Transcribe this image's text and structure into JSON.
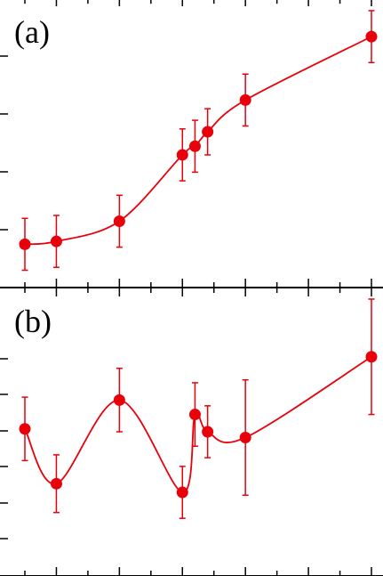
{
  "chart_data": [
    {
      "type": "scatter",
      "panel_label": "(a)",
      "title": "",
      "xlabel": "",
      "ylabel": "",
      "xlim": [
        -0.3,
        11.4
      ],
      "ylim": [
        0.0,
        10.0
      ],
      "grid": false,
      "color": "#e8000b",
      "series": [
        {
          "style": "points-with-error-bars-and-smooth-fit",
          "x": [
            0.0,
            1.0,
            3.0,
            5.0,
            5.4,
            5.8,
            7.0,
            11.0
          ],
          "y": [
            1.5,
            1.6,
            2.3,
            4.6,
            4.9,
            5.4,
            6.5,
            8.7
          ],
          "yerr": [
            0.9,
            0.9,
            0.9,
            0.9,
            0.9,
            0.8,
            0.9,
            0.9
          ]
        }
      ]
    },
    {
      "type": "scatter",
      "panel_label": "(b)",
      "title": "",
      "xlabel": "",
      "ylabel": "",
      "xlim": [
        -0.3,
        11.4
      ],
      "ylim": [
        0.0,
        10.0
      ],
      "grid": false,
      "color": "#e8000b",
      "series": [
        {
          "style": "points-with-error-bars-and-smooth-fit",
          "x": [
            0.0,
            1.0,
            3.0,
            5.0,
            5.4,
            5.8,
            7.0,
            11.0
          ],
          "y": [
            5.1,
            3.2,
            6.1,
            2.9,
            5.6,
            5.0,
            4.8,
            7.6
          ],
          "yerr": [
            1.1,
            1.0,
            1.1,
            0.9,
            1.1,
            0.9,
            2.0,
            2.0
          ]
        }
      ]
    }
  ]
}
